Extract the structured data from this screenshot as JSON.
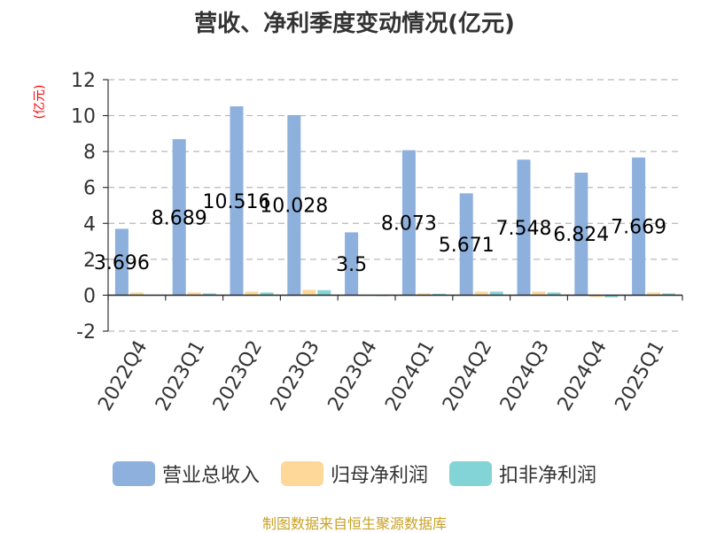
{
  "title": "营收、净利季度变动情况(亿元)",
  "unit": "(亿元)",
  "footer": "制图数据来自恒生聚源数据库",
  "colors": {
    "revenue": "#8eb0dc",
    "net_profit": "#fdd898",
    "deducted_profit": "#83d4d6",
    "axis": "#333333",
    "grid": "#b8b8b8",
    "unit": "#ff0000",
    "footer": "#c9a227"
  },
  "chart_data": {
    "type": "bar",
    "title": "营收、净利季度变动情况(亿元)",
    "ylabel": "(亿元)",
    "ylim": [
      -2,
      12
    ],
    "yticks": [
      -2,
      0,
      2,
      4,
      6,
      8,
      10,
      12
    ],
    "grid": true,
    "legend_position": "bottom",
    "categories": [
      "2022Q4",
      "2023Q1",
      "2023Q2",
      "2023Q3",
      "2023Q4",
      "2024Q1",
      "2024Q2",
      "2024Q3",
      "2024Q4",
      "2025Q1"
    ],
    "data_labels": [
      "3.696",
      "8.689",
      "10.516",
      "10.028",
      "3.5",
      "8.073",
      "5.671",
      "7.548",
      "6.824",
      "7.669"
    ],
    "series": [
      {
        "name": "营业总收入",
        "values": [
          3.696,
          8.689,
          10.516,
          10.028,
          3.5,
          8.073,
          5.671,
          7.548,
          6.824,
          7.669
        ]
      },
      {
        "name": "归母净利润",
        "values": [
          0.15,
          0.15,
          0.2,
          0.3,
          0.02,
          0.1,
          0.2,
          0.2,
          -0.1,
          0.15
        ]
      },
      {
        "name": "扣非净利润",
        "values": [
          0.02,
          0.1,
          0.15,
          0.28,
          0.0,
          0.08,
          0.2,
          0.15,
          -0.12,
          0.1
        ]
      }
    ]
  }
}
